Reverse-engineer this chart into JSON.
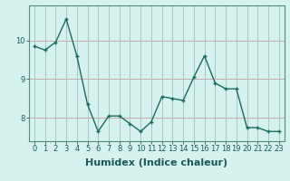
{
  "x": [
    0,
    1,
    2,
    3,
    4,
    5,
    6,
    7,
    8,
    9,
    10,
    11,
    12,
    13,
    14,
    15,
    16,
    17,
    18,
    19,
    20,
    21,
    22,
    23
  ],
  "y": [
    9.85,
    9.75,
    9.95,
    10.55,
    9.6,
    8.35,
    7.65,
    8.05,
    8.05,
    7.85,
    7.65,
    7.9,
    8.55,
    8.5,
    8.45,
    9.05,
    9.6,
    8.9,
    8.75,
    8.75,
    7.75,
    7.75,
    7.65,
    7.65
  ],
  "line_color": "#1a6b5e",
  "marker": "+",
  "marker_size": 3.5,
  "bg_color": "#d5f2ee",
  "grid_color_h": "#c8a8a8",
  "grid_color_v": "#a8c8c8",
  "xlabel": "Humidex (Indice chaleur)",
  "xlabel_fontsize": 8,
  "ylim": [
    7.4,
    10.9
  ],
  "xlim": [
    -0.5,
    23.5
  ],
  "yticks": [
    8,
    9,
    10
  ],
  "xticks": [
    0,
    1,
    2,
    3,
    4,
    5,
    6,
    7,
    8,
    9,
    10,
    11,
    12,
    13,
    14,
    15,
    16,
    17,
    18,
    19,
    20,
    21,
    22,
    23
  ],
  "tick_fontsize": 6,
  "linewidth": 1.0
}
